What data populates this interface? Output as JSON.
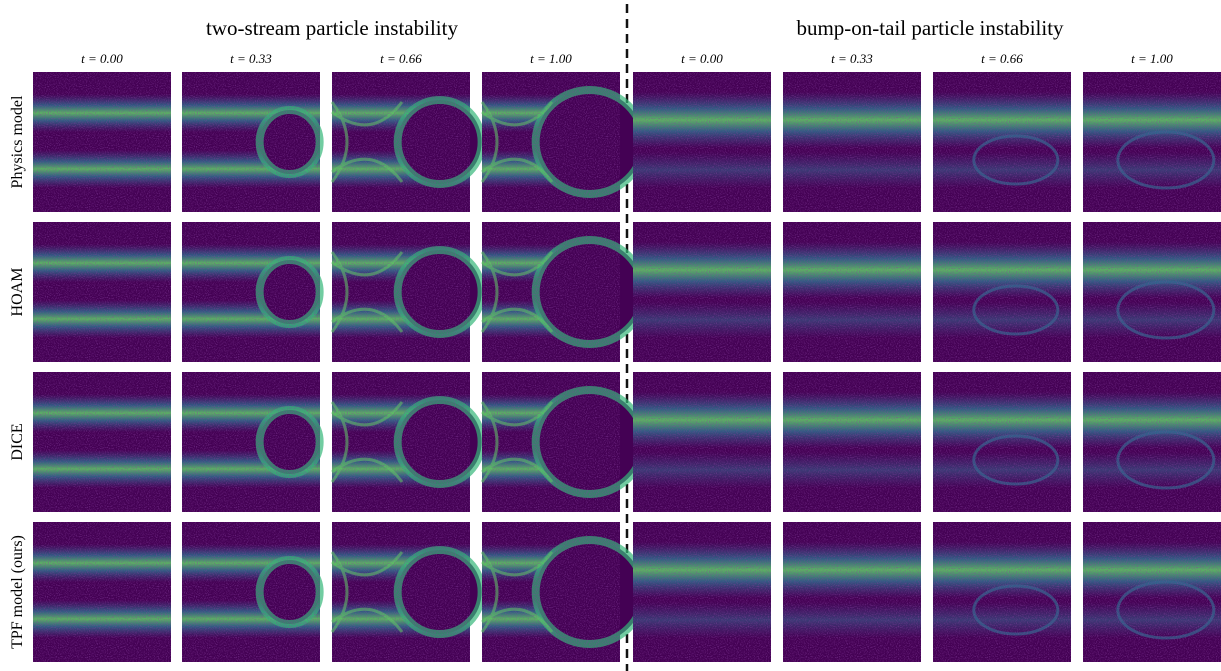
{
  "sections": [
    {
      "title": "two-stream particle instability",
      "columns": [
        "t = 0.00",
        "t = 0.33",
        "t = 0.66",
        "t = 1.00"
      ]
    },
    {
      "title": "bump-on-tail particle instability",
      "columns": [
        "t = 0.00",
        "t = 0.33",
        "t = 0.66",
        "t = 1.00"
      ]
    }
  ],
  "rows": [
    "Physics model",
    "HOAM",
    "DICE",
    "TPF model (ours)"
  ]
}
